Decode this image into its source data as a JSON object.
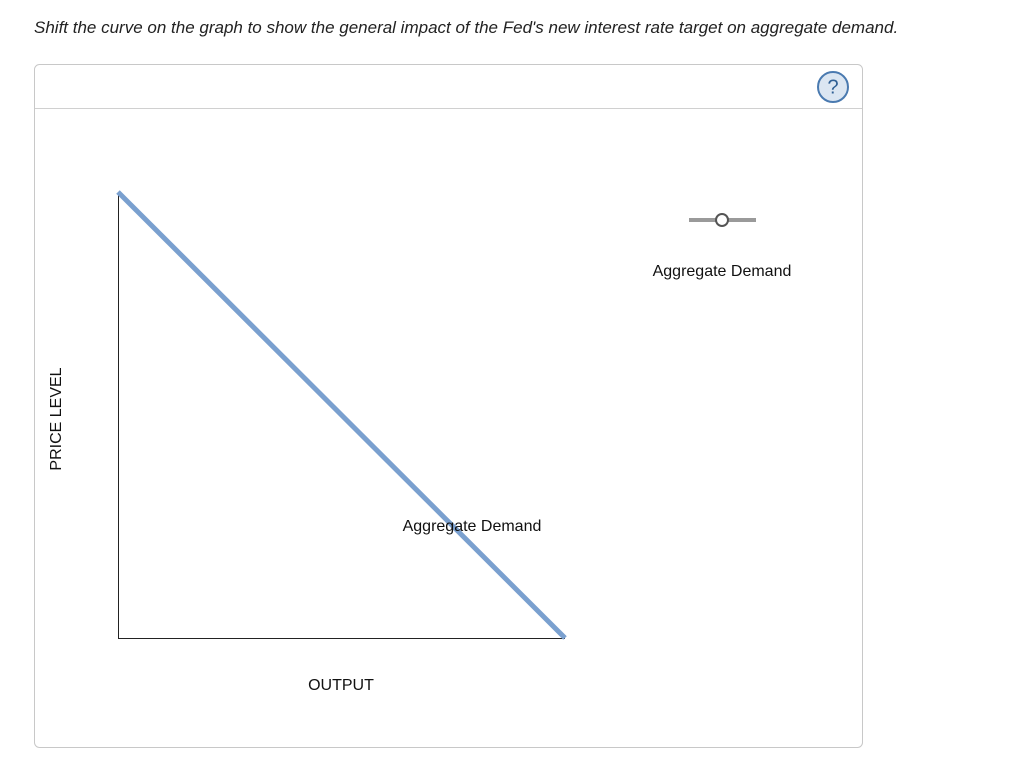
{
  "instruction": "Shift the curve on the graph to show the general impact of the Fed's new interest rate target on aggregate demand.",
  "help_button": "?",
  "graph": {
    "y_axis_label": "PRICE LEVEL",
    "x_axis_label": "OUTPUT",
    "curve_label": "Aggregate Demand"
  },
  "tool_palette": {
    "tool_label": "Aggregate Demand"
  }
}
